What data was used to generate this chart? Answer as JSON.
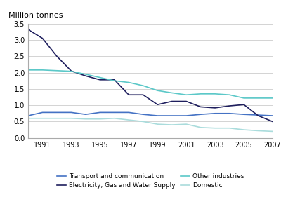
{
  "years": [
    1990,
    1991,
    1992,
    1993,
    1994,
    1995,
    1996,
    1997,
    1998,
    1999,
    2000,
    2001,
    2002,
    2003,
    2004,
    2005,
    2006,
    2007
  ],
  "transport": [
    0.68,
    0.78,
    0.78,
    0.78,
    0.72,
    0.78,
    0.78,
    0.78,
    0.72,
    0.68,
    0.68,
    0.68,
    0.72,
    0.75,
    0.75,
    0.72,
    0.7,
    0.68
  ],
  "electricity": [
    3.32,
    3.05,
    2.5,
    2.05,
    1.9,
    1.78,
    1.78,
    1.32,
    1.32,
    1.02,
    1.12,
    1.12,
    0.95,
    0.92,
    0.98,
    1.02,
    0.68,
    0.5
  ],
  "other_industries": [
    2.08,
    2.08,
    2.06,
    2.04,
    1.95,
    1.85,
    1.75,
    1.7,
    1.6,
    1.45,
    1.38,
    1.32,
    1.35,
    1.35,
    1.32,
    1.22,
    1.22,
    1.22
  ],
  "domestic": [
    0.6,
    0.6,
    0.6,
    0.6,
    0.58,
    0.58,
    0.6,
    0.55,
    0.5,
    0.42,
    0.4,
    0.42,
    0.32,
    0.3,
    0.3,
    0.25,
    0.22,
    0.2
  ],
  "transport_color": "#4472C4",
  "electricity_color": "#1F1F5E",
  "other_industries_color": "#5BC8C8",
  "domestic_color": "#AADCDC",
  "ylabel": "Million tonnes",
  "ylim": [
    0,
    3.5
  ],
  "yticks": [
    0,
    0.5,
    1.0,
    1.5,
    2.0,
    2.5,
    3.0,
    3.5
  ],
  "xtick_years": [
    1991,
    1993,
    1995,
    1997,
    1999,
    2001,
    2003,
    2005,
    2007
  ],
  "legend_transport": "Transport and communication",
  "legend_electricity": "Electricity, Gas and Water Supply",
  "legend_other": "Other industries",
  "legend_domestic": "Domestic",
  "background_color": "#FFFFFF",
  "grid_color": "#CCCCCC",
  "linewidth": 1.2
}
